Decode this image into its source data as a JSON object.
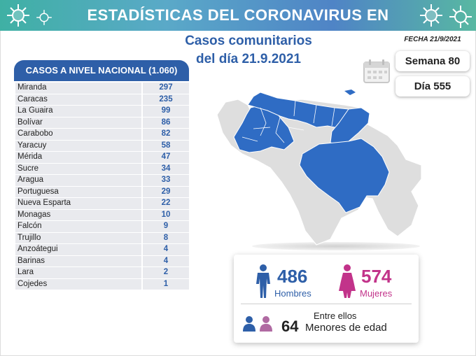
{
  "header": {
    "title": "ESTADÍSTICAS DEL CORONAVIRUS EN VENEZUELA",
    "subtitle_line1": "Casos comunitarios",
    "subtitle_line2": "del día 21.9.2021",
    "date_label": "FECHA 21/9/2021"
  },
  "badges": {
    "week": "Semana 80",
    "day": "Día 555"
  },
  "table": {
    "heading": "CASOS A NIVEL NACIONAL (1.060)",
    "rows": [
      {
        "state": "Miranda",
        "cases": "297"
      },
      {
        "state": "Caracas",
        "cases": "235"
      },
      {
        "state": "La Guaira",
        "cases": "99"
      },
      {
        "state": "Bolívar",
        "cases": "86"
      },
      {
        "state": "Carabobo",
        "cases": "82"
      },
      {
        "state": "Yaracuy",
        "cases": "58"
      },
      {
        "state": "Mérida",
        "cases": "47"
      },
      {
        "state": "Sucre",
        "cases": "34"
      },
      {
        "state": "Aragua",
        "cases": "33"
      },
      {
        "state": "Portuguesa",
        "cases": "29"
      },
      {
        "state": "Nueva Esparta",
        "cases": "22"
      },
      {
        "state": "Monagas",
        "cases": "10"
      },
      {
        "state": "Falcón",
        "cases": "9"
      },
      {
        "state": "Trujillo",
        "cases": "8"
      },
      {
        "state": "Anzoátegui",
        "cases": "4"
      },
      {
        "state": "Barinas",
        "cases": "4"
      },
      {
        "state": "Lara",
        "cases": "2"
      },
      {
        "state": "Cojedes",
        "cases": "1"
      }
    ]
  },
  "stats": {
    "men_count": "486",
    "men_label": "Hombres",
    "women_count": "574",
    "women_label": "Mujeres",
    "minors_intro": "Entre ellos",
    "minors_count": "64",
    "minors_label": "Menores de edad"
  },
  "colors": {
    "brand_blue": "#2e5fa8",
    "map_blue": "#2f6cc4",
    "map_gray": "#dedede",
    "women_pink": "#c2338a",
    "minor_pink": "#b06aa2",
    "banner_green": "#3fb0a4"
  },
  "icons": {
    "virus": "virus-icon",
    "calendar": "calendar-icon",
    "man": "man-icon",
    "woman": "woman-icon"
  }
}
